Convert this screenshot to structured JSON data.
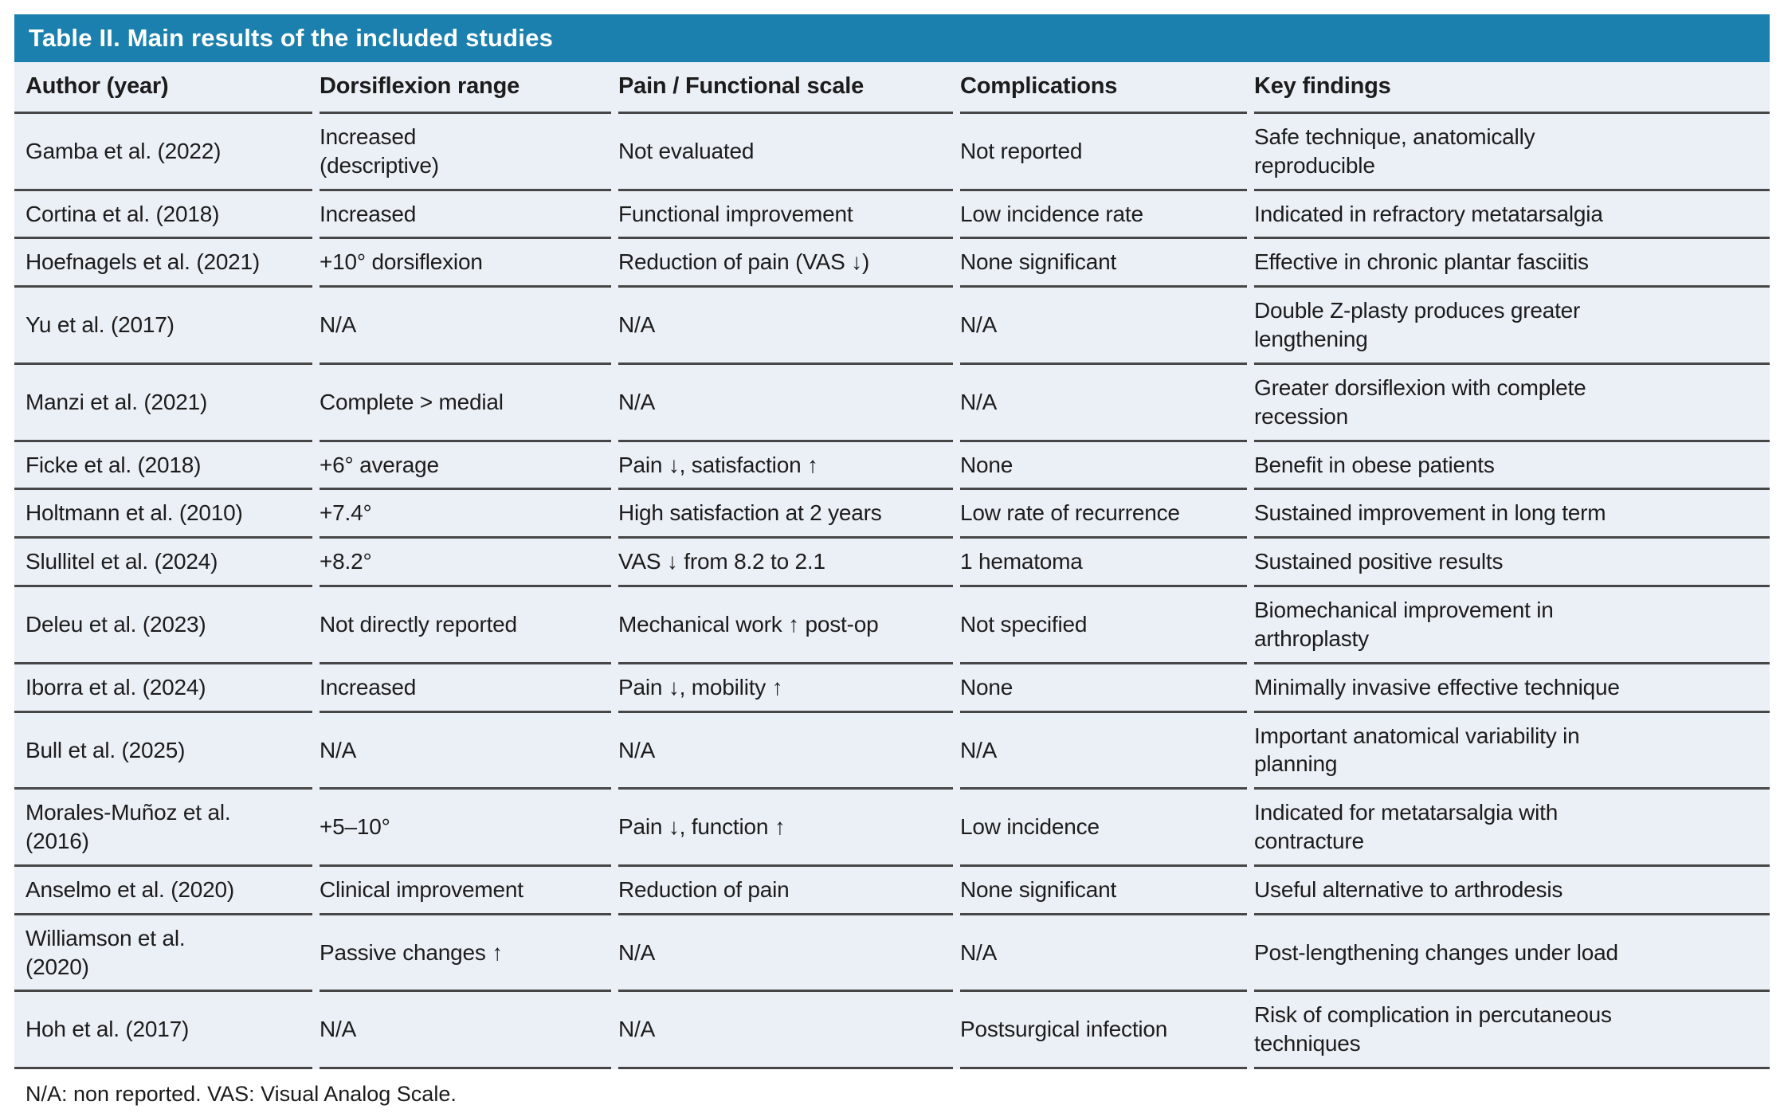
{
  "title": "Table II. Main results of the included studies",
  "footnote": "N/A: non reported. VAS: Visual Analog Scale.",
  "colors": {
    "accent_blue": "#1b80ad",
    "row_background": "#ebeff6",
    "rule": "#464646",
    "title_text": "#ffffff",
    "body_text": "#1c1c1c"
  },
  "columns": [
    "Author (year)",
    "Dorsiflexion range",
    "Pain / Functional scale",
    "Complications",
    "Key findings"
  ],
  "rows": [
    [
      "Gamba et al. (2022)",
      "Increased\n(descriptive)",
      "Not evaluated",
      "Not reported",
      "Safe technique, anatomically\nreproducible"
    ],
    [
      "Cortina et al. (2018)",
      "Increased",
      "Functional improvement",
      "Low incidence rate",
      "Indicated in refractory metatarsalgia"
    ],
    [
      "Hoefnagels et al. (2021)",
      "+10° dorsiflexion",
      "Reduction of pain (VAS ↓)",
      "None significant",
      "Effective in chronic plantar fasciitis"
    ],
    [
      "Yu et al. (2017)",
      "N/A",
      "N/A",
      "N/A",
      "Double Z-plasty produces greater\nlengthening"
    ],
    [
      "Manzi et al. (2021)",
      "Complete > medial",
      "N/A",
      "N/A",
      "Greater dorsiflexion with complete\nrecession"
    ],
    [
      "Ficke et al. (2018)",
      "+6° average",
      "Pain ↓, satisfaction ↑",
      "None",
      "Benefit in obese patients"
    ],
    [
      "Holtmann et al. (2010)",
      "+7.4°",
      "High satisfaction at 2 years",
      "Low rate of recurrence",
      "Sustained improvement in long term"
    ],
    [
      "Slullitel et al. (2024)",
      "+8.2°",
      "VAS ↓ from 8.2 to 2.1",
      "1 hematoma",
      "Sustained positive results"
    ],
    [
      "Deleu et al. (2023)",
      "Not directly reported",
      "Mechanical work ↑ post-op",
      "Not specified",
      "Biomechanical improvement in\narthroplasty"
    ],
    [
      "Iborra et al. (2024)",
      "Increased",
      "Pain ↓, mobility ↑",
      "None",
      "Minimally invasive effective technique"
    ],
    [
      "Bull et al. (2025)",
      "N/A",
      "N/A",
      "N/A",
      "Important anatomical variability in\nplanning"
    ],
    [
      "Morales-Muñoz et al.\n(2016)",
      "+5–10°",
      "Pain ↓, function ↑",
      "Low incidence",
      "Indicated for metatarsalgia with\ncontracture"
    ],
    [
      "Anselmo et al. (2020)",
      "Clinical improvement",
      "Reduction of pain",
      "None significant",
      "Useful alternative to arthrodesis"
    ],
    [
      "Williamson et al.\n(2020)",
      "Passive changes ↑",
      "N/A",
      "N/A",
      "Post-lengthening changes under load"
    ],
    [
      "Hoh et al. (2017)",
      "N/A",
      "N/A",
      "Postsurgical infection",
      "Risk of complication in percutaneous\ntechniques"
    ]
  ]
}
